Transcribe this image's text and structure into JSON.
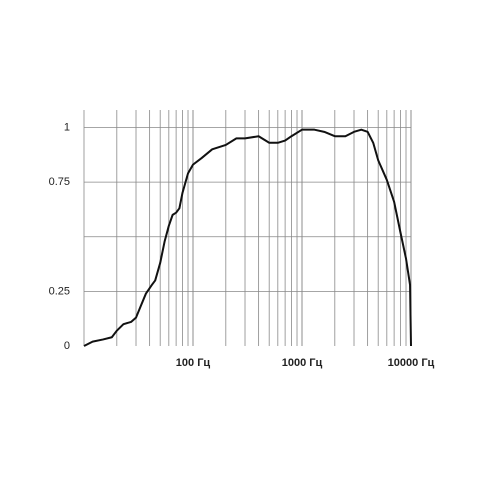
{
  "chart_data": {
    "type": "line",
    "log_x": true,
    "minor_grid": true,
    "color": "#111111",
    "x": [
      10,
      12,
      15,
      18,
      20,
      23,
      27,
      30,
      33,
      37,
      42,
      45,
      50,
      55,
      60,
      65,
      70,
      75,
      80,
      90,
      100,
      120,
      150,
      200,
      250,
      300,
      400,
      500,
      600,
      700,
      800,
      1000,
      1300,
      1600,
      2000,
      2500,
      3000,
      3500,
      4000,
      4500,
      5000,
      6000,
      7000,
      8000,
      9000,
      9800,
      10000
    ],
    "values": [
      0.0,
      0.02,
      0.03,
      0.04,
      0.07,
      0.1,
      0.11,
      0.13,
      0.18,
      0.24,
      0.28,
      0.3,
      0.38,
      0.48,
      0.55,
      0.6,
      0.61,
      0.63,
      0.7,
      0.79,
      0.83,
      0.86,
      0.9,
      0.92,
      0.95,
      0.95,
      0.96,
      0.93,
      0.93,
      0.94,
      0.96,
      0.99,
      0.99,
      0.98,
      0.96,
      0.96,
      0.98,
      0.99,
      0.98,
      0.93,
      0.85,
      0.76,
      0.66,
      0.52,
      0.4,
      0.28,
      0.0
    ],
    "xlim": [
      10,
      10000
    ],
    "ylim": [
      0,
      1.08
    ],
    "xticks": [
      {
        "value": 100,
        "label": "100 Гц"
      },
      {
        "value": 1000,
        "label": "1000 Гц"
      },
      {
        "value": 10000,
        "label": "10000 Гц"
      }
    ],
    "yticks": [
      0,
      0.25,
      0.75,
      1
    ],
    "ygrid": [
      0.25,
      0.5,
      0.75,
      1
    ]
  }
}
